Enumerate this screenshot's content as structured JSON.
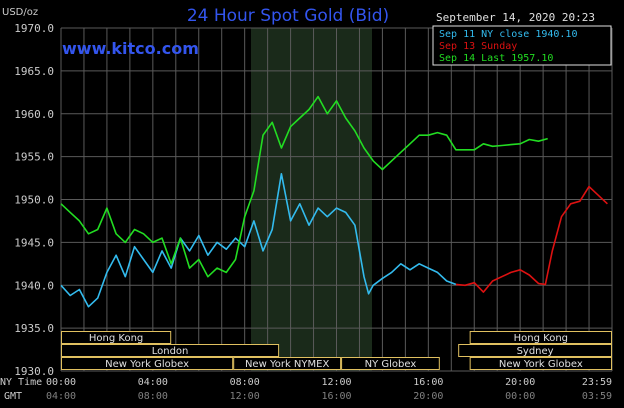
{
  "header": {
    "title": "24 Hour Spot Gold (Bid)",
    "unit": "USD/oz",
    "site": "www.kitco.com",
    "timestamp": "September 14, 2020 20:23"
  },
  "legend": [
    {
      "label": "Sep 11 NY close 1940.10",
      "color": "#33bbee"
    },
    {
      "label": "Sep 13 Sunday",
      "color": "#dd1111"
    },
    {
      "label": "Sep 14 Last 1957.10",
      "color": "#22dd22"
    }
  ],
  "colors": {
    "background": "#000000",
    "grid": "#5a5a5a",
    "highlight": "#1a2a1a",
    "title": "#3355ee",
    "axis_text": "#cccccc",
    "session_border": "#e0c060",
    "session_text": "#e0e0e0"
  },
  "sessions": {
    "row1": [
      {
        "label": "Hong Kong"
      },
      {
        "label": "Hong Kong"
      }
    ],
    "row2": [
      {
        "label": "London"
      },
      {
        "label": "Sydney"
      }
    ],
    "row3": [
      {
        "label": "New York Globex"
      },
      {
        "label": "New York NYMEX"
      },
      {
        "label": "NY Globex"
      },
      {
        "label": "New York Globex"
      }
    ]
  },
  "time_rows": {
    "ny_label": "NY Time",
    "gmt_label": "GMT"
  },
  "chart_data": {
    "type": "line",
    "title": "24 Hour Spot Gold (Bid)",
    "ylabel": "USD/oz",
    "ylim": [
      1930,
      1970
    ],
    "yticks": [
      "1970.0",
      "1965.0",
      "1960.0",
      "1955.0",
      "1950.0",
      "1945.0",
      "1940.0",
      "1935.0",
      "1930.0"
    ],
    "xlim": [
      0,
      24
    ],
    "xticks_ny": [
      "00:00",
      "04:00",
      "08:00",
      "12:00",
      "16:00",
      "20:00",
      "23:59"
    ],
    "xticks_gmt": [
      "04:00",
      "08:00",
      "12:00",
      "16:00",
      "20:00",
      "00:00",
      "03:59"
    ],
    "grid": true,
    "series": [
      {
        "name": "Sep 11 NY close 1940.10",
        "color": "#33bbee",
        "x": [
          0,
          0.4,
          0.8,
          1.2,
          1.6,
          2.0,
          2.4,
          2.8,
          3.2,
          3.6,
          4.0,
          4.4,
          4.8,
          5.2,
          5.6,
          6.0,
          6.4,
          6.8,
          7.2,
          7.6,
          8.0,
          8.4,
          8.8,
          9.2,
          9.6,
          10.0,
          10.4,
          10.8,
          11.2,
          11.6,
          12.0,
          12.4,
          12.8,
          13.2,
          13.4,
          13.6,
          14.0,
          14.4,
          14.8,
          15.2,
          15.6,
          16.0,
          16.4,
          16.8,
          17.2
        ],
        "y": [
          1940.0,
          1938.8,
          1939.5,
          1937.5,
          1938.5,
          1941.5,
          1943.5,
          1941.0,
          1944.5,
          1943.0,
          1941.5,
          1944.0,
          1942.0,
          1945.5,
          1944.0,
          1945.8,
          1943.5,
          1945.0,
          1944.2,
          1945.5,
          1944.5,
          1947.5,
          1944.0,
          1946.5,
          1953.0,
          1947.5,
          1949.5,
          1947.0,
          1949.0,
          1948.0,
          1949.0,
          1948.5,
          1947.0,
          1941.0,
          1939.0,
          1940.0,
          1940.8,
          1941.5,
          1942.5,
          1941.8,
          1942.5,
          1942.0,
          1941.5,
          1940.5,
          1940.1
        ]
      },
      {
        "name": "Sep 13 Sunday",
        "color": "#dd1111",
        "x": [
          17.2,
          17.6,
          18.0,
          18.4,
          18.8,
          19.2,
          19.6,
          20.0,
          20.4,
          20.8,
          21.1,
          21.4,
          21.8,
          22.2,
          22.6,
          23.0,
          23.4,
          23.8
        ],
        "y": [
          1940.1,
          1940.0,
          1940.3,
          1939.2,
          1940.5,
          1941.0,
          1941.5,
          1941.8,
          1941.2,
          1940.2,
          1940.1,
          1944.0,
          1948.0,
          1949.5,
          1949.8,
          1951.5,
          1950.5,
          1949.5
        ]
      },
      {
        "name": "Sep 14 Last 1957.10",
        "color": "#22dd22",
        "x": [
          0,
          0.4,
          0.8,
          1.2,
          1.6,
          2.0,
          2.4,
          2.8,
          3.2,
          3.6,
          4.0,
          4.4,
          4.8,
          5.2,
          5.6,
          6.0,
          6.4,
          6.8,
          7.2,
          7.6,
          8.0,
          8.4,
          8.8,
          9.2,
          9.6,
          10.0,
          10.4,
          10.8,
          11.2,
          11.6,
          12.0,
          12.4,
          12.8,
          13.2,
          13.6,
          14.0,
          14.4,
          14.8,
          15.2,
          15.6,
          16.0,
          16.4,
          16.8,
          17.2,
          17.6,
          18.0,
          18.4,
          18.8,
          19.2,
          19.6,
          20.0,
          20.4,
          20.8,
          21.2
        ],
        "y": [
          1949.5,
          1948.5,
          1947.5,
          1946.0,
          1946.5,
          1949.0,
          1946.0,
          1945.0,
          1946.5,
          1946.0,
          1945.0,
          1945.5,
          1942.5,
          1945.5,
          1942.0,
          1943.0,
          1941.0,
          1942.0,
          1941.5,
          1943.0,
          1948.0,
          1951.0,
          1957.5,
          1959.0,
          1956.0,
          1958.5,
          1959.5,
          1960.5,
          1962.0,
          1960.0,
          1961.5,
          1959.5,
          1958.0,
          1956.0,
          1954.5,
          1953.5,
          1954.5,
          1955.5,
          1956.5,
          1957.5,
          1957.5,
          1957.8,
          1957.5,
          1955.8,
          1955.8,
          1955.8,
          1956.5,
          1956.2,
          1956.3,
          1956.4,
          1956.5,
          1957.0,
          1956.8,
          1957.1
        ]
      }
    ]
  }
}
